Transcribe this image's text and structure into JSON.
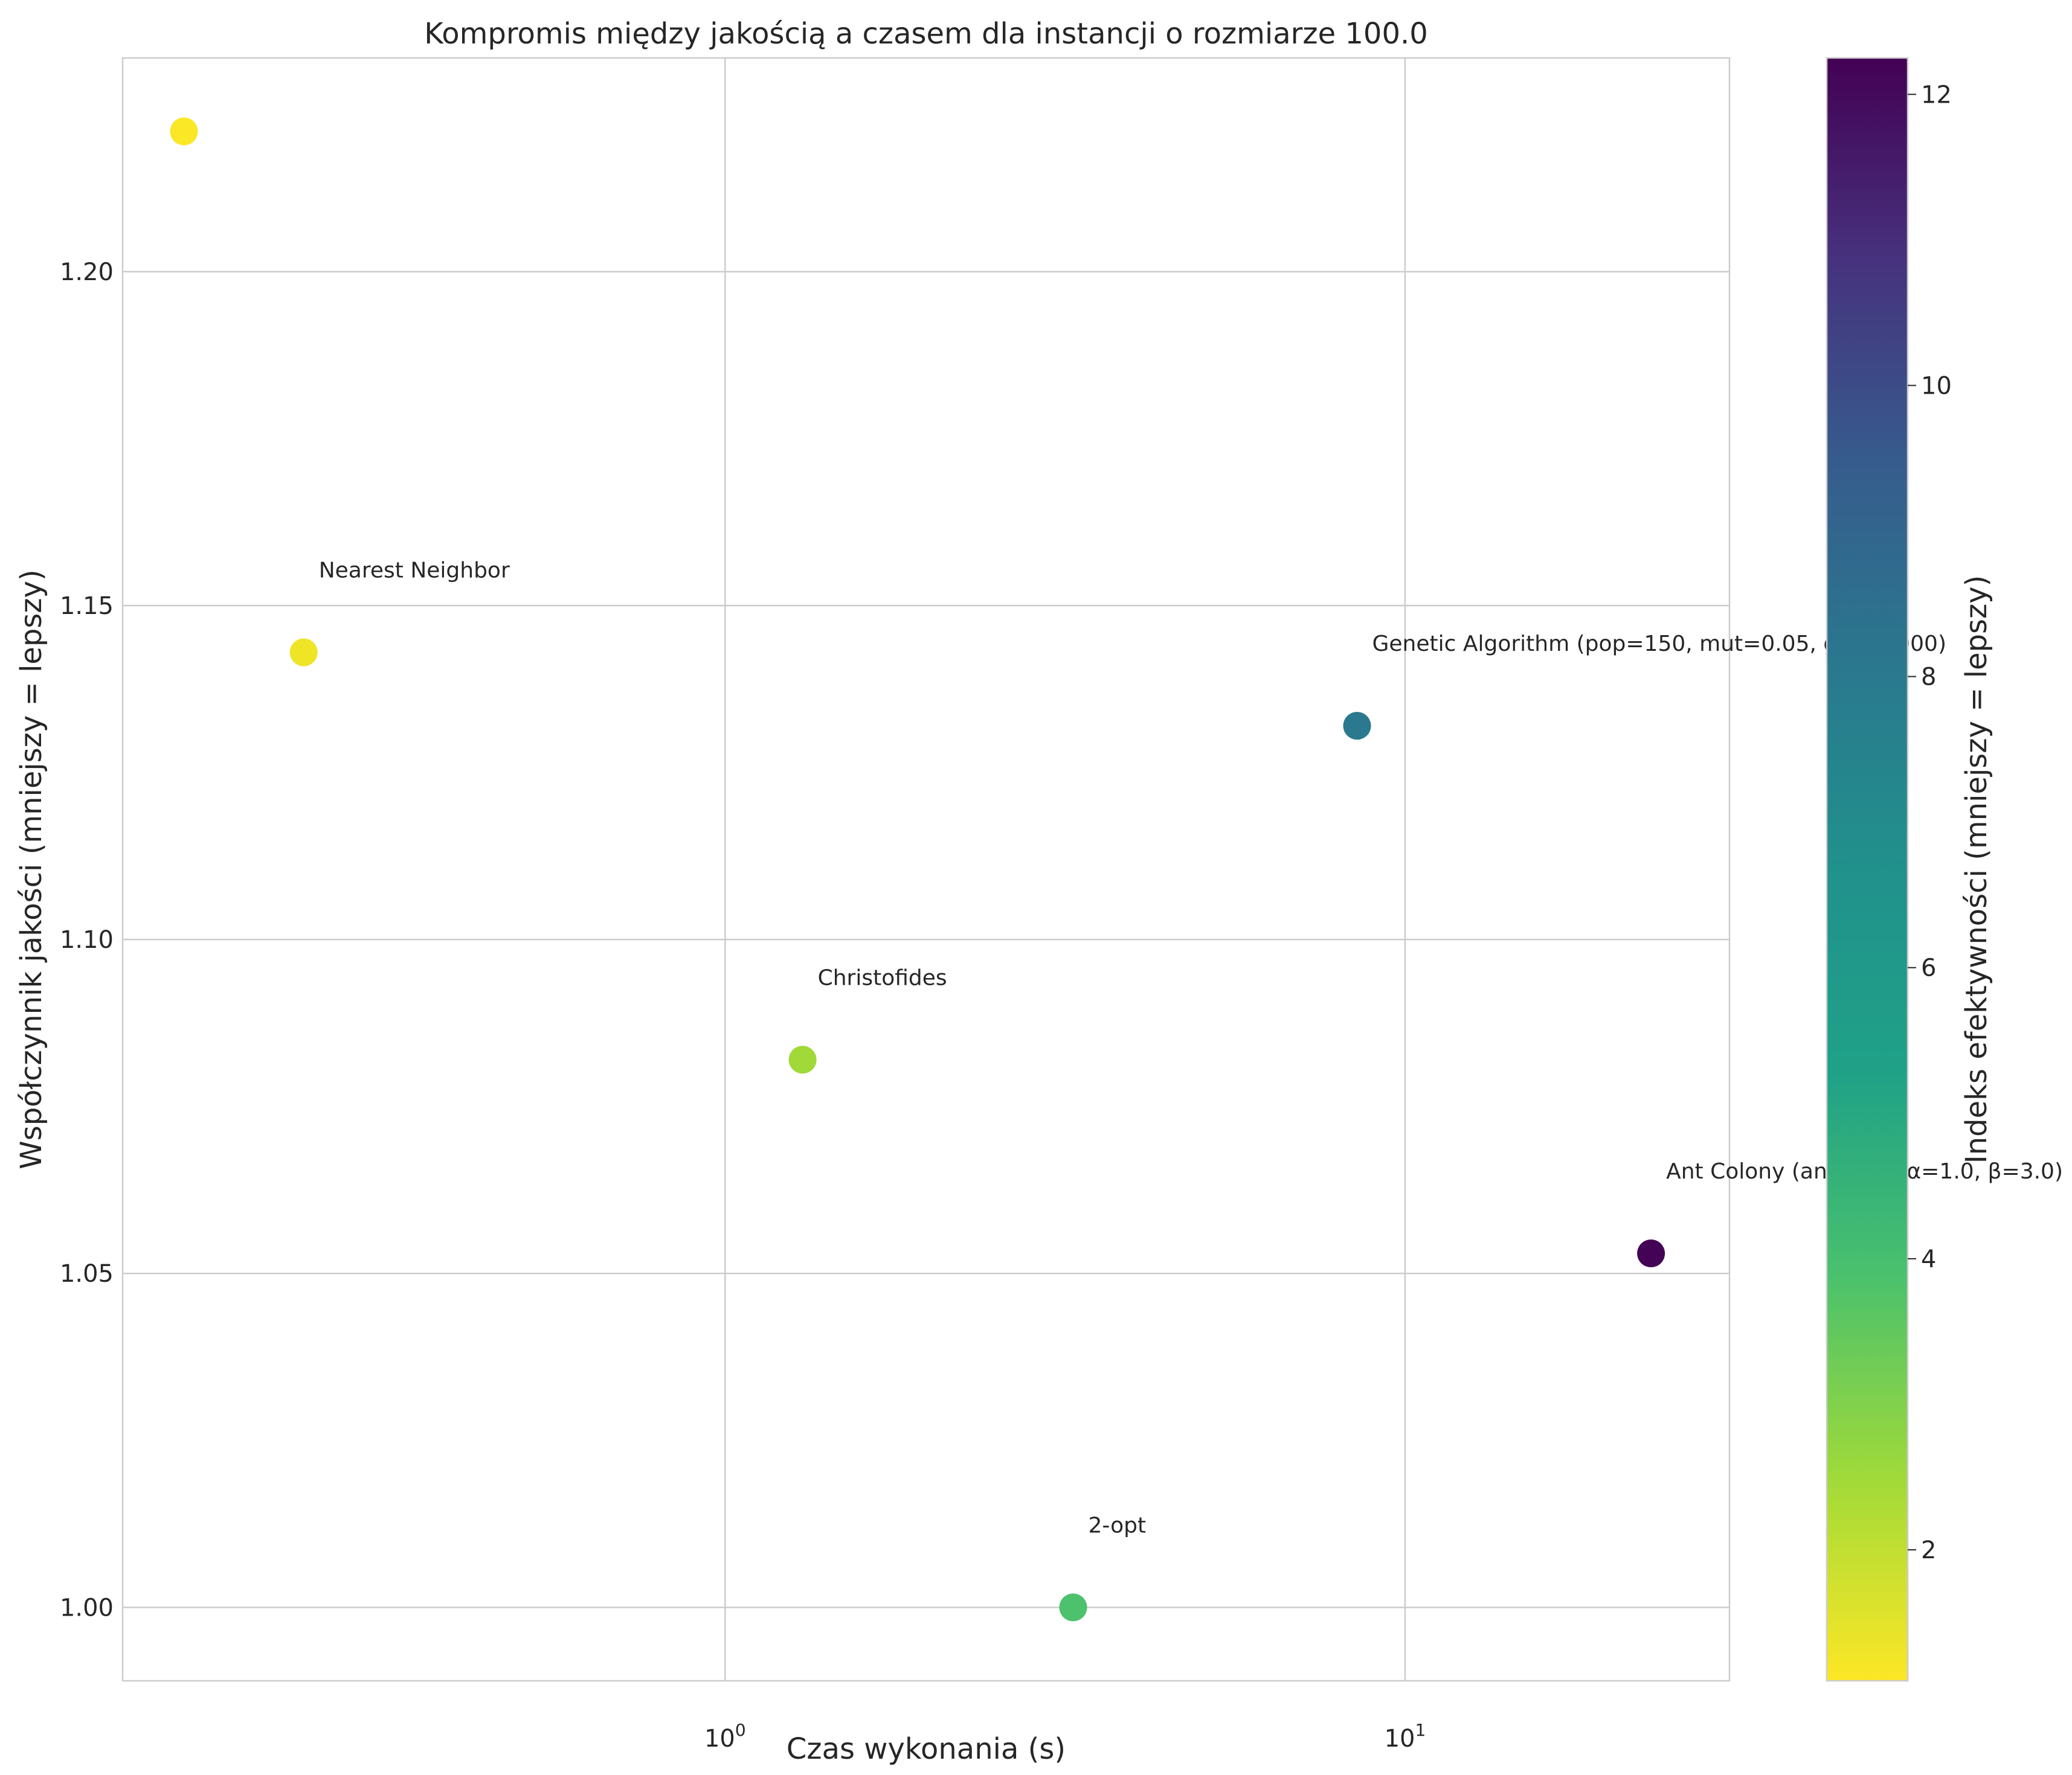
{
  "chart_data": {
    "type": "scatter",
    "title": "Kompromis między jakością a czasem dla instancji o rozmiarze 100.0",
    "xlabel": "Czas wykonania (s)",
    "ylabel": "Współczynnik jakości (mniejszy = lepszy)",
    "xscale": "log",
    "xlim": [
      0.13,
      30.0
    ],
    "ylim": [
      0.989,
      1.232
    ],
    "grid": true,
    "x_ticks": [
      {
        "value": 1,
        "base": "10",
        "exp": "0"
      },
      {
        "value": 10,
        "base": "10",
        "exp": "1"
      }
    ],
    "y_ticks": [
      {
        "value": 1.0,
        "label": "1.00"
      },
      {
        "value": 1.05,
        "label": "1.05"
      },
      {
        "value": 1.1,
        "label": "1.10"
      },
      {
        "value": 1.15,
        "label": "1.15"
      },
      {
        "value": 1.2,
        "label": "1.20"
      }
    ],
    "points": [
      {
        "x": 0.16,
        "y": 1.221,
        "c": 1.15,
        "label": ""
      },
      {
        "x": 0.24,
        "y": 1.143,
        "c": 1.35,
        "label": "Nearest Neighbor"
      },
      {
        "x": 1.3,
        "y": 1.082,
        "c": 2.7,
        "label": "Christofides"
      },
      {
        "x": 3.25,
        "y": 1.0,
        "c": 4.3,
        "label": "2-opt"
      },
      {
        "x": 8.5,
        "y": 1.132,
        "c": 7.7,
        "label": "Genetic Algorithm (pop=150, mut=0.05, gen=1000)"
      },
      {
        "x": 23.0,
        "y": 1.053,
        "c": 12.2,
        "label": "Ant Colony (ants=10, α=1.0, β=3.0)"
      }
    ],
    "colorbar": {
      "label": "Indeks efektywności (mniejszy = lepszy)",
      "colormap": "viridis_r",
      "range": [
        1.1,
        12.25
      ],
      "ticks": [
        {
          "value": 2,
          "label": "2"
        },
        {
          "value": 4,
          "label": "4"
        },
        {
          "value": 6,
          "label": "6"
        },
        {
          "value": 8,
          "label": "8"
        },
        {
          "value": 10,
          "label": "10"
        },
        {
          "value": 12,
          "label": "12"
        }
      ]
    }
  }
}
